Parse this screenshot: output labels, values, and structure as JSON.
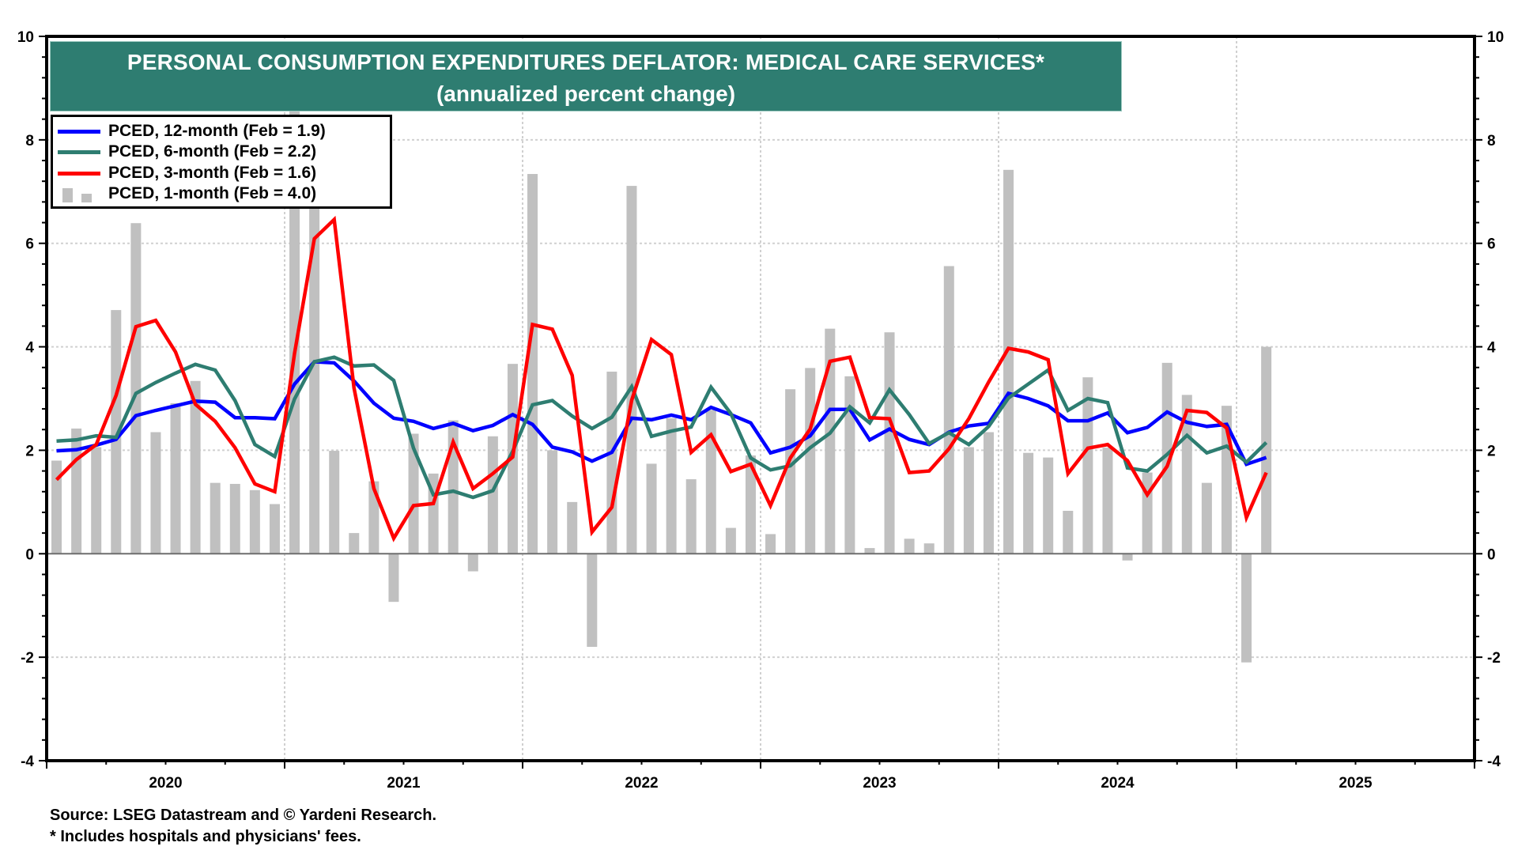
{
  "chart_data": {
    "type": "bar+line",
    "title": "PERSONAL CONSUMPTION EXPENDITURES DEFLATOR: MEDICAL CARE SERVICES*",
    "subtitle": "(annualized percent change)",
    "xlabel": "",
    "ylabel": "",
    "ylim": [
      -4,
      10
    ],
    "yticks": [
      -4,
      -2,
      0,
      2,
      4,
      6,
      8,
      10
    ],
    "yticks_right": [
      -4,
      -2,
      0,
      2,
      4,
      6,
      8,
      10
    ],
    "x_start": "2020-01",
    "x_end": "2025-12",
    "xticks": [
      "2020",
      "2021",
      "2022",
      "2023",
      "2024",
      "2025"
    ],
    "grid": true,
    "legend_position": "top-left",
    "months": [
      "2020-01",
      "2020-02",
      "2020-03",
      "2020-04",
      "2020-05",
      "2020-06",
      "2020-07",
      "2020-08",
      "2020-09",
      "2020-10",
      "2020-11",
      "2020-12",
      "2021-01",
      "2021-02",
      "2021-03",
      "2021-04",
      "2021-05",
      "2021-06",
      "2021-07",
      "2021-08",
      "2021-09",
      "2021-10",
      "2021-11",
      "2021-12",
      "2022-01",
      "2022-02",
      "2022-03",
      "2022-04",
      "2022-05",
      "2022-06",
      "2022-07",
      "2022-08",
      "2022-09",
      "2022-10",
      "2022-11",
      "2022-12",
      "2023-01",
      "2023-02",
      "2023-03",
      "2023-04",
      "2023-05",
      "2023-06",
      "2023-07",
      "2023-08",
      "2023-09",
      "2023-10",
      "2023-11",
      "2023-12",
      "2024-01",
      "2024-02",
      "2024-03",
      "2024-04",
      "2024-05",
      "2024-06",
      "2024-07",
      "2024-08",
      "2024-09",
      "2024-10",
      "2024-11",
      "2024-12",
      "2025-01",
      "2025-02"
    ],
    "series": [
      {
        "name": "PCED, 12-month (Feb = 1.9)",
        "type": "line",
        "color": "#0000FF",
        "values": [
          1.99,
          2.01,
          2.1,
          2.21,
          2.67,
          2.77,
          2.86,
          2.95,
          2.93,
          2.63,
          2.63,
          2.61,
          3.28,
          3.71,
          3.69,
          3.34,
          2.91,
          2.62,
          2.56,
          2.42,
          2.52,
          2.38,
          2.48,
          2.69,
          2.5,
          2.06,
          1.97,
          1.79,
          1.96,
          2.62,
          2.59,
          2.68,
          2.59,
          2.83,
          2.69,
          2.53,
          1.95,
          2.06,
          2.28,
          2.79,
          2.79,
          2.2,
          2.41,
          2.21,
          2.11,
          2.35,
          2.47,
          2.52,
          3.1,
          3.0,
          2.86,
          2.57,
          2.57,
          2.72,
          2.34,
          2.44,
          2.74,
          2.54,
          2.46,
          2.5,
          1.73,
          1.86
        ]
      },
      {
        "name": "PCED, 6-month (Feb = 2.2)",
        "type": "line",
        "color": "#2E7D71",
        "values": [
          2.18,
          2.2,
          2.28,
          2.25,
          3.1,
          3.31,
          3.49,
          3.66,
          3.55,
          2.96,
          2.11,
          1.88,
          2.99,
          3.71,
          3.8,
          3.63,
          3.65,
          3.35,
          2.04,
          1.14,
          1.21,
          1.09,
          1.22,
          1.98,
          2.88,
          2.96,
          2.66,
          2.42,
          2.64,
          3.23,
          2.27,
          2.37,
          2.45,
          3.22,
          2.71,
          1.85,
          1.62,
          1.7,
          2.05,
          2.33,
          2.84,
          2.53,
          3.17,
          2.69,
          2.13,
          2.34,
          2.11,
          2.46,
          3.01,
          3.28,
          3.55,
          2.77,
          3.0,
          2.92,
          1.66,
          1.6,
          1.92,
          2.29,
          1.95,
          2.08,
          1.77,
          2.15
        ]
      },
      {
        "name": "PCED, 3-month (Feb = 1.6)",
        "type": "line",
        "color": "#FF0000",
        "values": [
          1.43,
          1.82,
          2.11,
          3.06,
          4.39,
          4.51,
          3.9,
          2.89,
          2.56,
          2.05,
          1.35,
          1.2,
          3.87,
          6.09,
          6.46,
          3.2,
          1.26,
          0.3,
          0.93,
          0.97,
          2.16,
          1.26,
          1.55,
          1.87,
          4.43,
          4.34,
          3.45,
          0.42,
          0.9,
          2.97,
          4.14,
          3.85,
          1.96,
          2.3,
          1.59,
          1.73,
          0.93,
          1.85,
          2.41,
          3.72,
          3.8,
          2.63,
          2.61,
          1.57,
          1.6,
          2.03,
          2.61,
          3.32,
          3.97,
          3.9,
          3.75,
          1.55,
          2.04,
          2.11,
          1.8,
          1.14,
          1.69,
          2.77,
          2.73,
          2.43,
          0.7,
          1.57
        ]
      },
      {
        "name": "PCED, 1-month (Feb = 4.0)",
        "type": "bar",
        "color": "#C0C0C0",
        "values": [
          1.8,
          2.42,
          2.06,
          4.71,
          6.39,
          2.35,
          2.91,
          3.34,
          1.37,
          1.35,
          1.23,
          0.96,
          8.8,
          8.3,
          1.99,
          0.4,
          1.4,
          -0.93,
          2.32,
          1.55,
          2.58,
          -0.34,
          2.27,
          3.67,
          7.34,
          2.0,
          1.0,
          -1.8,
          3.52,
          7.11,
          1.74,
          2.62,
          1.44,
          2.78,
          0.5,
          1.9,
          0.38,
          3.18,
          3.59,
          4.35,
          3.43,
          0.11,
          4.28,
          0.29,
          0.2,
          5.56,
          2.06,
          2.35,
          7.42,
          1.95,
          1.86,
          0.83,
          3.41,
          2.05,
          -0.13,
          1.57,
          3.69,
          3.07,
          1.37,
          2.86,
          -2.1,
          4.0
        ]
      }
    ]
  },
  "legend": {
    "items": [
      {
        "label": "PCED, 12-month (Feb = 1.9)",
        "color": "#0000FF",
        "kind": "line"
      },
      {
        "label": "PCED, 6-month (Feb = 2.2)",
        "color": "#2E7D71",
        "kind": "line"
      },
      {
        "label": "PCED, 3-month (Feb = 1.6)",
        "color": "#FF0000",
        "kind": "line"
      },
      {
        "label": "PCED, 1-month (Feb = 4.0)",
        "color": "#C0C0C0",
        "kind": "bar"
      }
    ]
  },
  "title_box": {
    "title": "PERSONAL CONSUMPTION EXPENDITURES DEFLATOR: MEDICAL CARE SERVICES*",
    "subtitle": "(annualized percent change)",
    "background": "#2E7D71"
  },
  "footer": {
    "source": "Source: LSEG Datastream and © Yardeni Research.",
    "note": "* Includes hospitals and physicians' fees."
  }
}
